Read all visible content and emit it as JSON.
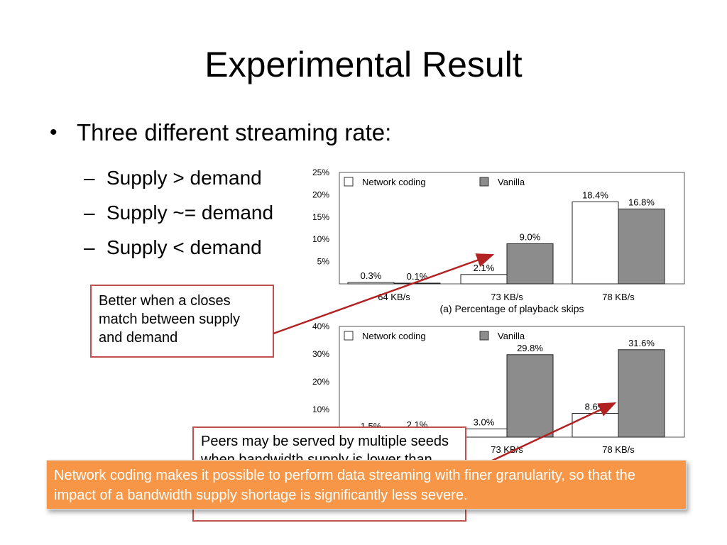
{
  "slide": {
    "title": "Experimental Result",
    "bullet": "Three different streaming rate:",
    "sub_items": [
      "Supply > demand",
      "Supply ~= demand",
      "Supply < demand"
    ]
  },
  "callouts": {
    "better": "Better when a closes match between supply and demand",
    "peers": "Peers may be served by multiple seeds when bandwidth supply is lower than demand",
    "banner": "Network coding makes it possible to perform data streaming with finer granularity, so that the impact of a bandwidth supply shortage is significantly less severe."
  },
  "colors": {
    "callout_border": "#c0504d",
    "arrow": "#b22222",
    "banner_bg": "#f79646",
    "network_coding_fill": "#ffffff",
    "vanilla_fill": "#8c8c8c"
  },
  "chart_data": [
    {
      "type": "bar",
      "caption": "(a) Percentage of playback skips",
      "categories": [
        "64 KB/s",
        "73 KB/s",
        "78 KB/s"
      ],
      "series": [
        {
          "name": "Network coding",
          "values": [
            0.3,
            2.1,
            18.4
          ],
          "labels": [
            "0.3%",
            "2.1%",
            "18.4%"
          ]
        },
        {
          "name": "Vanilla",
          "values": [
            0.1,
            9.0,
            16.8
          ],
          "labels": [
            "0.1%",
            "9.0%",
            "16.8%"
          ]
        }
      ],
      "yticks": [
        "5%",
        "10%",
        "15%",
        "20%",
        "25%"
      ],
      "ylim": [
        0,
        25
      ],
      "legend": "top"
    },
    {
      "type": "bar",
      "caption": "",
      "categories": [
        "64 KB/s",
        "73 KB/s",
        "78 KB/s"
      ],
      "series": [
        {
          "name": "Network coding",
          "values": [
            1.5,
            3.0,
            8.6
          ],
          "labels": [
            "1.5%",
            "3.0%",
            "8.6%"
          ]
        },
        {
          "name": "Vanilla",
          "values": [
            2.1,
            29.8,
            31.6
          ],
          "labels": [
            "2.1%",
            "29.8%",
            "31.6%"
          ]
        }
      ],
      "yticks": [
        "10%",
        "20%",
        "30%",
        "40%"
      ],
      "ylim": [
        0,
        40
      ],
      "legend": "top"
    }
  ]
}
